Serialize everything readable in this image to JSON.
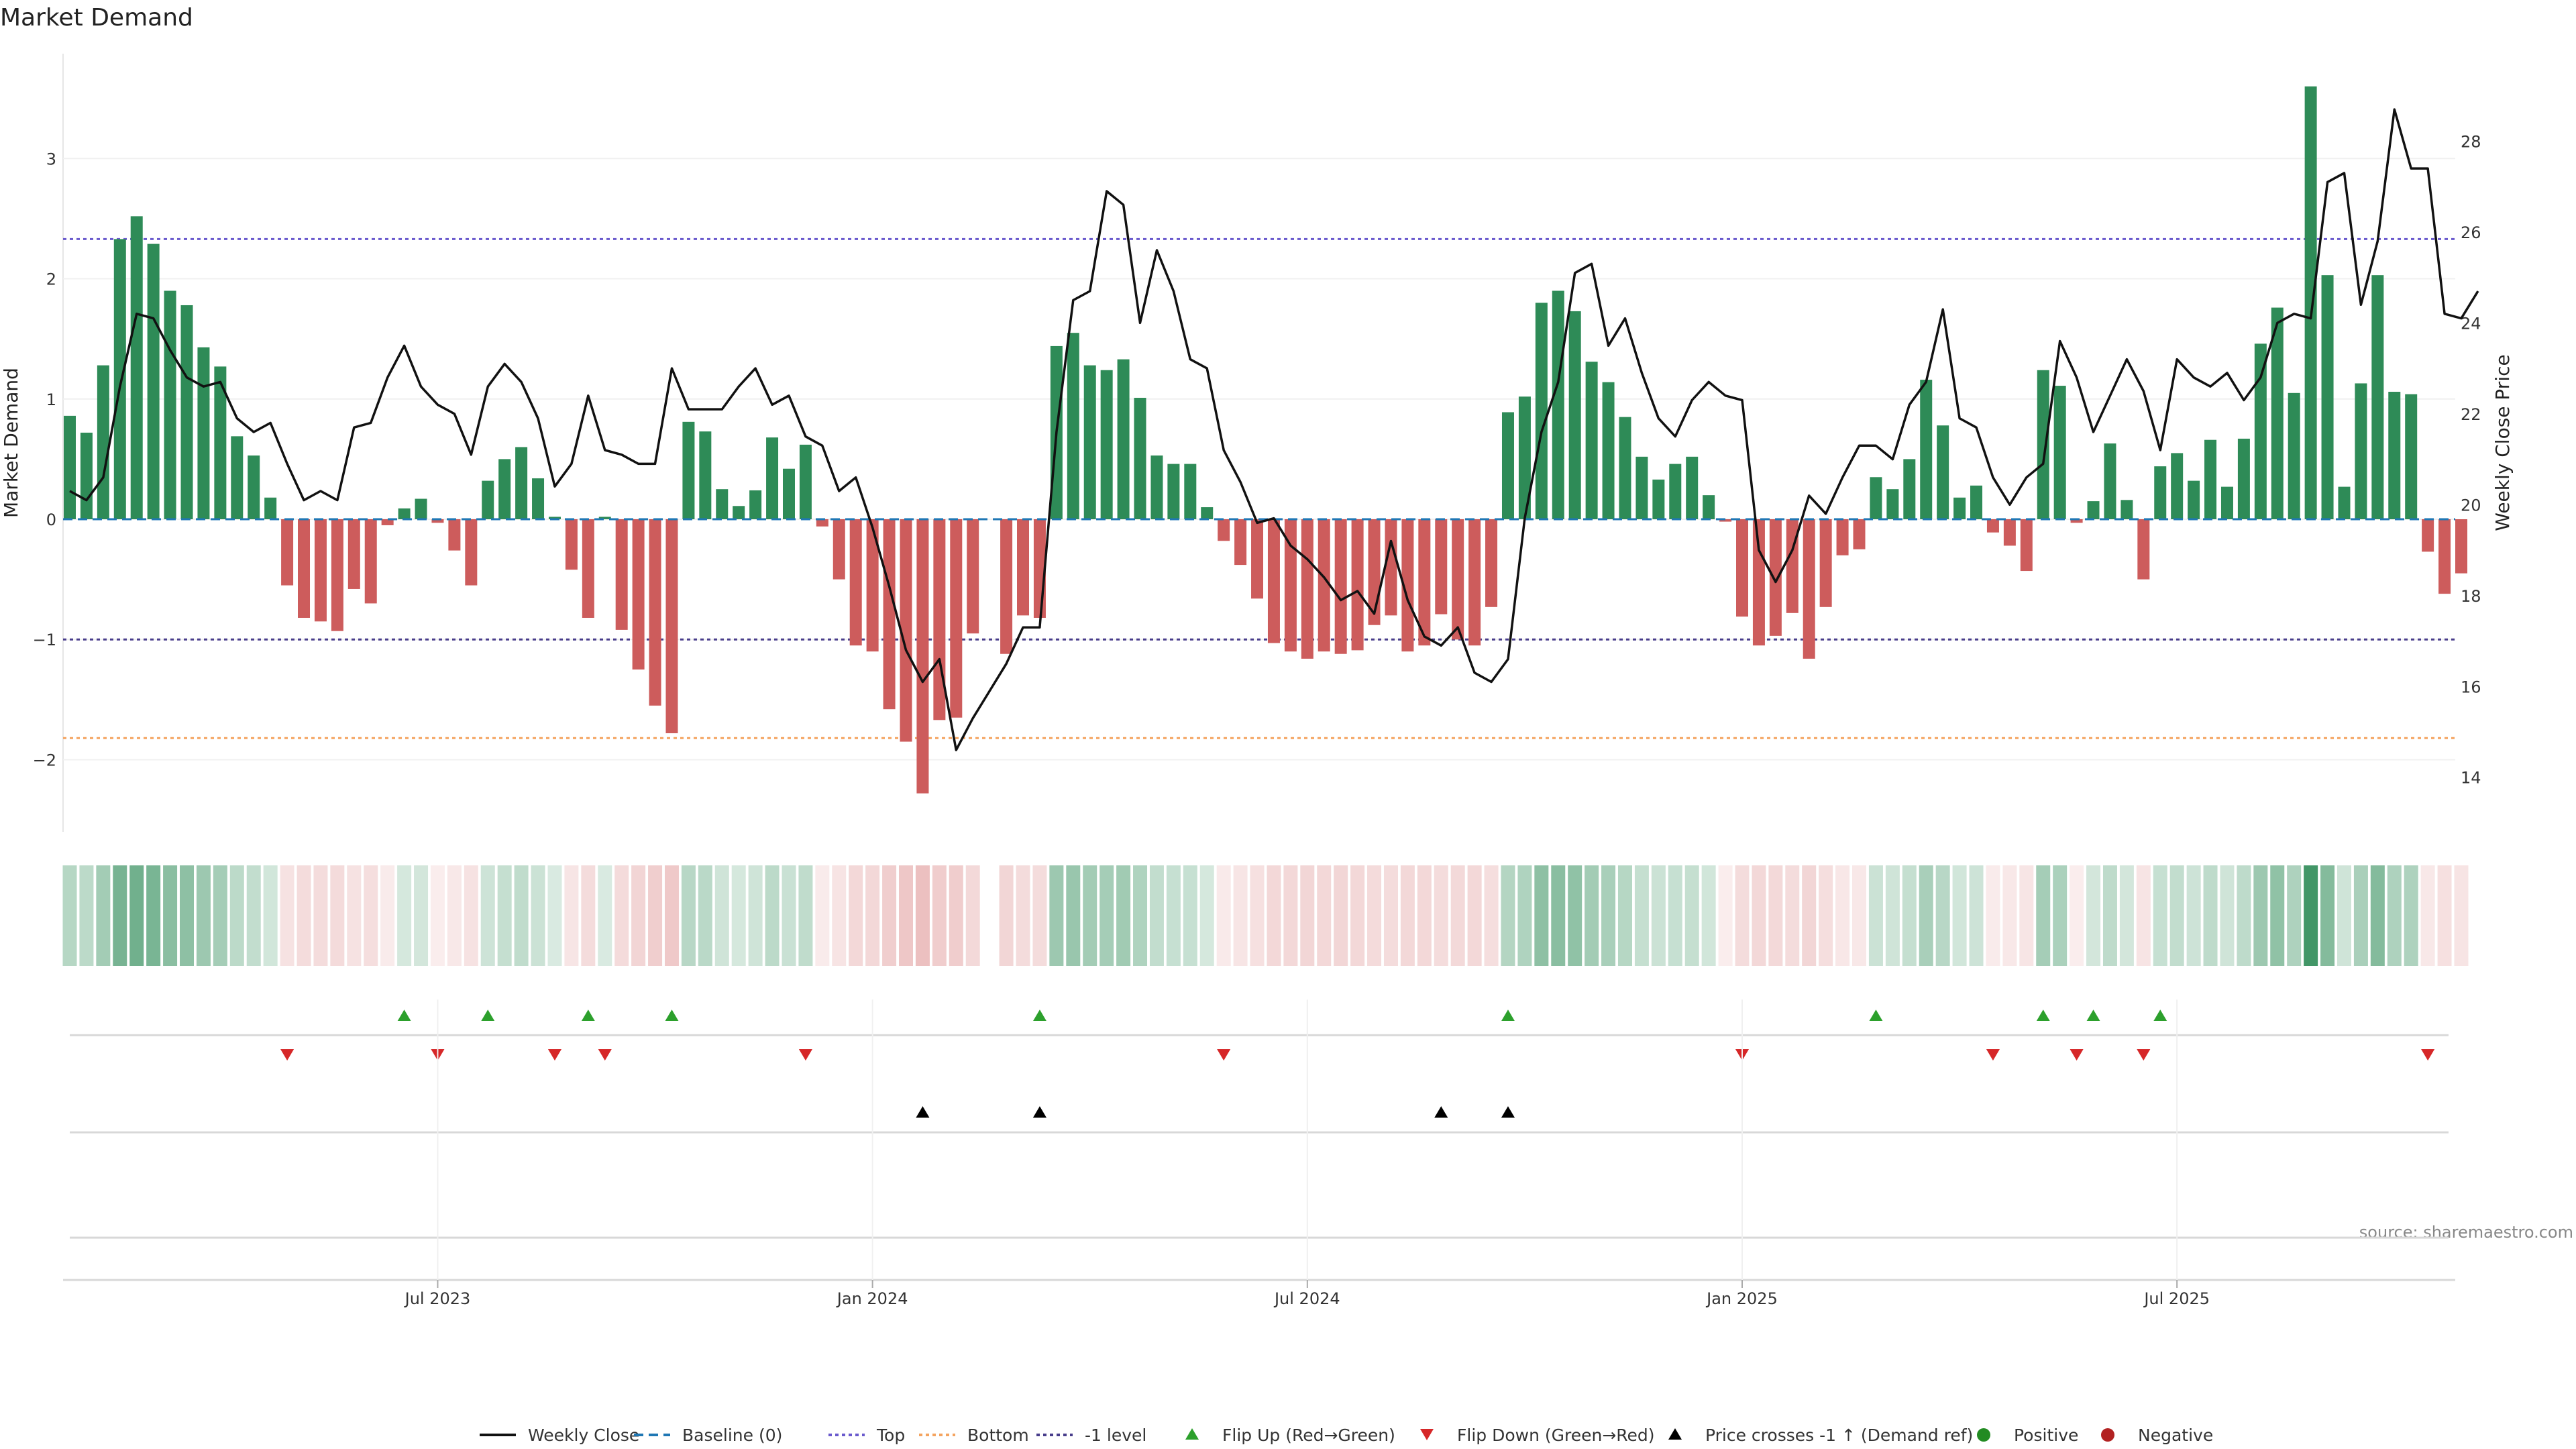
{
  "chart_data": {
    "type": "bar",
    "title": "Market Demand",
    "ylabel_left": "Market Demand",
    "ylabel_right": "Weekly Close Price",
    "ylim_left": [
      -2.6,
      3.9
    ],
    "ylim_right": [
      12.8,
      30.0
    ],
    "yticks_left": [
      {
        "v": 3,
        "label": "3"
      },
      {
        "v": 2,
        "label": "2"
      },
      {
        "v": 1,
        "label": "1"
      },
      {
        "v": 0,
        "label": "0"
      },
      {
        "v": -1,
        "label": "−1"
      },
      {
        "v": -2,
        "label": "−2"
      }
    ],
    "yticks_right": [
      {
        "v": 28,
        "label": "28"
      },
      {
        "v": 26,
        "label": "26"
      },
      {
        "v": 24,
        "label": "24"
      },
      {
        "v": 22,
        "label": "22"
      },
      {
        "v": 20,
        "label": "20"
      },
      {
        "v": 18,
        "label": "18"
      },
      {
        "v": 16,
        "label": "16"
      },
      {
        "v": 14,
        "label": "14"
      }
    ],
    "xticks": [
      {
        "i": 22,
        "label": "Jul 2023"
      },
      {
        "i": 48,
        "label": "Jan 2024"
      },
      {
        "i": 74,
        "label": "Jul 2024"
      },
      {
        "i": 100,
        "label": "Jan 2025"
      },
      {
        "i": 126,
        "label": "Jul 2025"
      }
    ],
    "reference_lines": {
      "top": 2.33,
      "bottom": -1.82,
      "minus_one": -1.0,
      "baseline": 0
    },
    "demand": [
      0.86,
      0.72,
      1.28,
      2.33,
      2.52,
      2.29,
      1.9,
      1.78,
      1.43,
      1.27,
      0.69,
      0.53,
      0.18,
      -0.55,
      -0.82,
      -0.85,
      -0.93,
      -0.58,
      -0.7,
      -0.05,
      0.09,
      0.17,
      -0.03,
      -0.26,
      -0.55,
      0.32,
      0.5,
      0.6,
      0.34,
      0.02,
      -0.42,
      -0.82,
      0.02,
      -0.92,
      -1.25,
      -1.55,
      -1.78,
      0.81,
      0.73,
      0.25,
      0.11,
      0.24,
      0.68,
      0.42,
      0.62,
      -0.06,
      -0.5,
      -1.05,
      -1.1,
      -1.58,
      -1.85,
      -2.28,
      -1.67,
      -1.65,
      -0.95,
      0,
      -1.12,
      -0.8,
      -0.82,
      1.44,
      1.55,
      1.28,
      1.24,
      1.33,
      1.01,
      0.53,
      0.46,
      0.46,
      0.1,
      -0.18,
      -0.38,
      -0.66,
      -1.03,
      -1.1,
      -1.16,
      -1.1,
      -1.12,
      -1.09,
      -0.88,
      -0.8,
      -1.1,
      -1.05,
      -0.79,
      -1.0,
      -1.05,
      -0.73,
      0.89,
      1.02,
      1.8,
      1.9,
      1.73,
      1.31,
      1.14,
      0.85,
      0.52,
      0.33,
      0.46,
      0.52,
      0.2,
      -0.02,
      -0.81,
      -1.05,
      -0.97,
      -0.78,
      -1.16,
      -0.73,
      -0.3,
      -0.25,
      0.35,
      0.25,
      0.5,
      1.16,
      0.78,
      0.18,
      0.28,
      -0.11,
      -0.22,
      -0.43,
      1.24,
      1.11,
      -0.03,
      0.15,
      0.63,
      0.16,
      -0.5,
      0.44,
      0.55,
      0.32,
      0.66,
      0.27,
      0.67,
      1.46,
      1.76,
      1.05,
      3.6,
      2.03,
      0.27,
      1.13,
      2.03,
      1.06,
      1.04,
      -0.27,
      -0.62,
      -0.45
    ],
    "price": [
      20.3,
      20.1,
      20.6,
      22.6,
      24.2,
      24.1,
      23.4,
      22.8,
      22.6,
      22.7,
      21.9,
      21.6,
      21.8,
      20.9,
      20.1,
      20.3,
      20.1,
      21.7,
      21.8,
      22.8,
      23.5,
      22.6,
      22.2,
      22.0,
      21.1,
      22.6,
      23.1,
      22.7,
      21.9,
      20.4,
      20.9,
      22.4,
      21.2,
      21.1,
      20.9,
      20.9,
      23.0,
      22.1,
      22.1,
      22.1,
      22.6,
      23.0,
      22.2,
      22.4,
      21.5,
      21.3,
      20.3,
      20.6,
      19.5,
      18.2,
      16.8,
      16.1,
      16.6,
      14.6,
      15.3,
      15.9,
      16.5,
      17.3,
      17.3,
      21.6,
      24.5,
      24.7,
      26.9,
      26.6,
      24.0,
      25.6,
      24.7,
      23.2,
      23.0,
      21.2,
      20.5,
      19.6,
      19.7,
      19.1,
      18.8,
      18.4,
      17.9,
      18.1,
      17.6,
      19.2,
      17.9,
      17.1,
      16.9,
      17.3,
      16.3,
      16.1,
      16.6,
      19.7,
      21.6,
      22.7,
      25.1,
      25.3,
      23.5,
      24.1,
      22.9,
      21.9,
      21.5,
      22.3,
      22.7,
      22.4,
      22.3,
      19.0,
      18.3,
      19.0,
      20.2,
      19.8,
      20.6,
      21.3,
      21.3,
      21.0,
      22.2,
      22.7,
      24.3,
      21.9,
      21.7,
      20.6,
      20.0,
      20.6,
      20.9,
      23.6,
      22.8,
      21.6,
      22.4,
      23.2,
      22.5,
      21.2,
      23.2,
      22.8,
      22.6,
      22.9,
      22.3,
      22.8,
      24.0,
      24.2,
      24.1,
      27.1,
      27.3,
      24.4,
      25.8,
      28.7,
      27.4,
      27.4,
      24.2,
      24.1,
      24.7
    ],
    "flip_up_idx": [
      20,
      25,
      31,
      36,
      58,
      86,
      108,
      118,
      121,
      125
    ],
    "flip_down_idx": [
      13,
      22,
      29,
      32,
      44,
      69,
      100,
      115,
      120,
      124,
      141
    ],
    "cross_idx": [
      51,
      58,
      82,
      86
    ],
    "legend": [
      "Weekly Close",
      "Baseline (0)",
      "Top",
      "Bottom",
      "-1 level",
      "Flip Up (Red→Green)",
      "Flip Down (Green→Red)",
      "Price crosses -1 ↑ (Demand ref)",
      "Positive",
      "Negative"
    ],
    "source": "source: sharemaestro.com",
    "colors": {
      "pos": "#2e8b57",
      "neg": "#cd5c5c",
      "price": "#111111",
      "top": "#6a5acd",
      "bottom": "#f4a460",
      "minus_one": "#483d8b",
      "baseline": "#1f77b4",
      "flip_up": "#2ca02c",
      "flip_down": "#d62728",
      "cross": "#000000",
      "positive_dot": "#228b22",
      "negative_dot": "#b22222"
    }
  }
}
